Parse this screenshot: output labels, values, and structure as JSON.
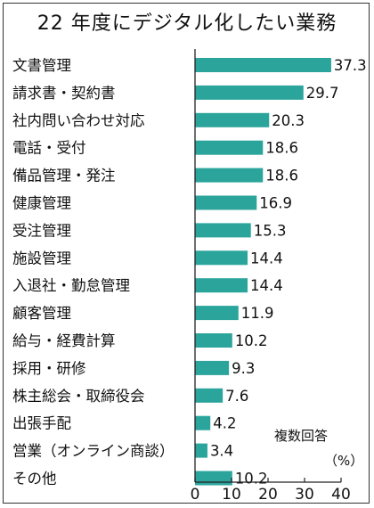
{
  "chart_data": {
    "type": "bar",
    "orientation": "horizontal",
    "title": "22 年度にデジタル化したい業務",
    "categories": [
      "文書管理",
      "請求書・契約書",
      "社内問い合わせ対応",
      "電話・受付",
      "備品管理・発注",
      "健康管理",
      "受注管理",
      "施設管理",
      "入退社・勤怠管理",
      "顧客管理",
      "給与・経費計算",
      "採用・研修",
      "株主総会・取締役会",
      "出張手配",
      "営業（オンライン商談）",
      "その他"
    ],
    "values": [
      37.3,
      29.7,
      20.3,
      18.6,
      18.6,
      16.9,
      15.3,
      14.4,
      14.4,
      11.9,
      10.2,
      9.3,
      7.6,
      4.2,
      3.4,
      10.2
    ],
    "value_labels": [
      "37.3",
      "29.7",
      "20.3",
      "18.6",
      "18.6",
      "16.9",
      "15.3",
      "14.4",
      "14.4",
      "11.9",
      "10.2",
      "9.3",
      "7.6",
      "4.2",
      "3.4",
      "10.2"
    ],
    "x_ticks": [
      0,
      10,
      20,
      30,
      40
    ],
    "xlim": [
      0,
      40
    ],
    "note_line1": "複数回答",
    "note_line2": "（%）",
    "bar_color": "#2ba59c",
    "grid": false
  }
}
